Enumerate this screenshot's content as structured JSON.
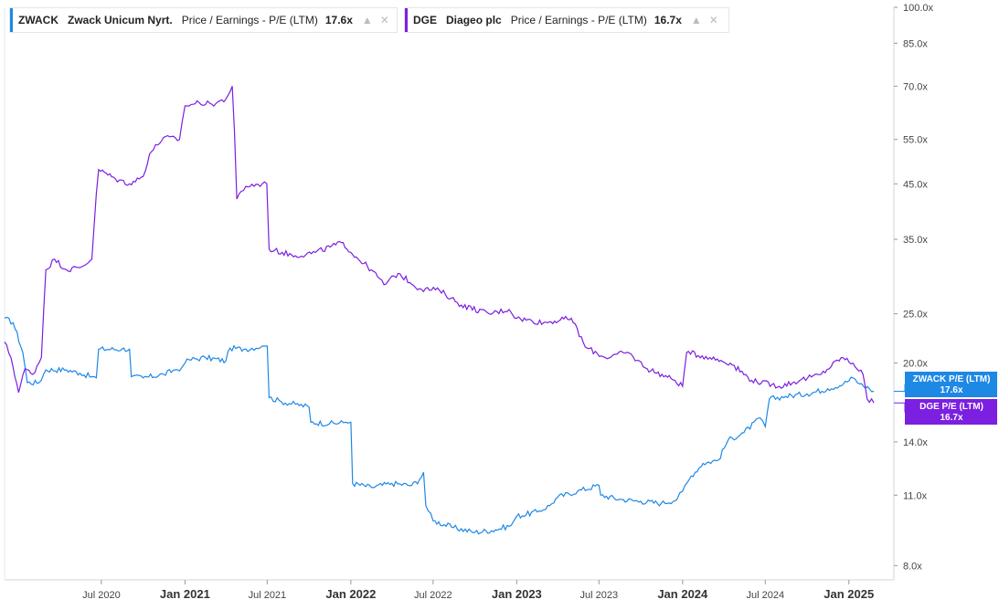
{
  "legend": [
    {
      "ticker": "ZWACK",
      "name": "Zwack Unicum Nyrt.",
      "metric": "Price / Earnings - P/E (LTM)",
      "value": "17.6x",
      "color": "#1e88e5"
    },
    {
      "ticker": "DGE",
      "name": "Diageo plc",
      "metric": "Price / Earnings - P/E (LTM)",
      "value": "16.7x",
      "color": "#7b1fe0"
    }
  ],
  "icons": {
    "chart": "chart-icon",
    "close": "close-icon"
  },
  "chart_data": {
    "type": "line",
    "y_scale": "log",
    "ylim": [
      7.5,
      100
    ],
    "y_ticks": [
      8,
      11,
      14,
      20,
      25,
      35,
      45,
      55,
      70,
      85,
      100
    ],
    "y_tick_labels": [
      "8.0x",
      "11.0x",
      "14.0x",
      "20.0x",
      "25.0x",
      "35.0x",
      "45.0x",
      "55.0x",
      "70.0x",
      "85.0x",
      "100.0x"
    ],
    "xlim": [
      "2019-12-01",
      "2025-04-10"
    ],
    "x_ticks": [
      {
        "date": "2020-07-01",
        "label": "Jul 2020",
        "major": false
      },
      {
        "date": "2021-01-01",
        "label": "Jan 2021",
        "major": true
      },
      {
        "date": "2021-07-01",
        "label": "Jul 2021",
        "major": false
      },
      {
        "date": "2022-01-01",
        "label": "Jan 2022",
        "major": true
      },
      {
        "date": "2022-07-01",
        "label": "Jul 2022",
        "major": false
      },
      {
        "date": "2023-01-01",
        "label": "Jan 2023",
        "major": true
      },
      {
        "date": "2023-07-01",
        "label": "Jul 2023",
        "major": false
      },
      {
        "date": "2024-01-01",
        "label": "Jan 2024",
        "major": true
      },
      {
        "date": "2024-07-01",
        "label": "Jul 2024",
        "major": false
      },
      {
        "date": "2025-01-01",
        "label": "Jan 2025",
        "major": true
      }
    ],
    "series": [
      {
        "name": "ZWACK P/E (LTM)",
        "color": "#1e88e5",
        "last": "17.6x",
        "points": [
          [
            "2019-12-01",
            24.5
          ],
          [
            "2019-12-20",
            24.0
          ],
          [
            "2020-01-10",
            21.0
          ],
          [
            "2020-01-20",
            18.3
          ],
          [
            "2020-02-15",
            18.3
          ],
          [
            "2020-03-01",
            19.4
          ],
          [
            "2020-04-15",
            19.4
          ],
          [
            "2020-05-15",
            19.1
          ],
          [
            "2020-06-10",
            18.8
          ],
          [
            "2020-06-20",
            18.7
          ],
          [
            "2020-06-25",
            21.3
          ],
          [
            "2020-08-15",
            21.3
          ],
          [
            "2020-09-01",
            21.3
          ],
          [
            "2020-09-05",
            18.8
          ],
          [
            "2020-10-01",
            18.7
          ],
          [
            "2020-11-15",
            19.0
          ],
          [
            "2020-12-10",
            19.4
          ],
          [
            "2020-12-25",
            19.6
          ],
          [
            "2021-01-01",
            20.0
          ],
          [
            "2021-01-10",
            20.3
          ],
          [
            "2021-02-15",
            20.5
          ],
          [
            "2021-04-01",
            20.2
          ],
          [
            "2021-04-10",
            21.4
          ],
          [
            "2021-05-15",
            21.3
          ],
          [
            "2021-06-20",
            21.6
          ],
          [
            "2021-06-25",
            21.6
          ],
          [
            "2021-07-01",
            21.6
          ],
          [
            "2021-07-05",
            17.1
          ],
          [
            "2021-08-01",
            16.8
          ],
          [
            "2021-09-01",
            16.6
          ],
          [
            "2021-10-01",
            16.4
          ],
          [
            "2021-10-05",
            15.3
          ],
          [
            "2021-11-15",
            15.2
          ],
          [
            "2021-12-20",
            15.3
          ],
          [
            "2022-01-01",
            15.3
          ],
          [
            "2022-01-05",
            11.6
          ],
          [
            "2022-02-15",
            11.4
          ],
          [
            "2022-04-01",
            11.6
          ],
          [
            "2022-05-15",
            11.5
          ],
          [
            "2022-06-01",
            11.8
          ],
          [
            "2022-06-10",
            12.2
          ],
          [
            "2022-06-15",
            10.5
          ],
          [
            "2022-07-01",
            9.8
          ],
          [
            "2022-08-15",
            9.5
          ],
          [
            "2022-10-01",
            9.3
          ],
          [
            "2022-11-15",
            9.4
          ],
          [
            "2022-12-20",
            9.6
          ],
          [
            "2023-01-01",
            10.0
          ],
          [
            "2023-02-15",
            10.2
          ],
          [
            "2023-03-15",
            10.5
          ],
          [
            "2023-04-01",
            10.9
          ],
          [
            "2023-05-15",
            11.2
          ],
          [
            "2023-07-01",
            11.5
          ],
          [
            "2023-07-05",
            11.0
          ],
          [
            "2023-08-15",
            10.8
          ],
          [
            "2023-10-01",
            10.7
          ],
          [
            "2023-11-15",
            10.6
          ],
          [
            "2023-12-20",
            10.8
          ],
          [
            "2024-01-01",
            11.2
          ],
          [
            "2024-01-20",
            12.0
          ],
          [
            "2024-02-15",
            12.7
          ],
          [
            "2024-03-20",
            12.9
          ],
          [
            "2024-04-10",
            14.1
          ],
          [
            "2024-05-15",
            14.6
          ],
          [
            "2024-06-20",
            15.6
          ],
          [
            "2024-07-01",
            15.0
          ],
          [
            "2024-07-10",
            17.0
          ],
          [
            "2024-08-15",
            17.2
          ],
          [
            "2024-10-01",
            17.4
          ],
          [
            "2024-11-15",
            17.8
          ],
          [
            "2024-12-20",
            18.2
          ],
          [
            "2025-01-10",
            18.7
          ],
          [
            "2025-01-25",
            18.2
          ],
          [
            "2025-02-15",
            17.8
          ],
          [
            "2025-02-25",
            17.6
          ]
        ]
      },
      {
        "name": "DGE P/E (LTM)",
        "color": "#7b1fe0",
        "last": "16.7x",
        "points": [
          [
            "2019-12-01",
            22.0
          ],
          [
            "2019-12-15",
            20.5
          ],
          [
            "2020-01-01",
            17.5
          ],
          [
            "2020-01-15",
            19.5
          ],
          [
            "2020-02-01",
            19.0
          ],
          [
            "2020-02-20",
            20.5
          ],
          [
            "2020-03-01",
            30.5
          ],
          [
            "2020-03-20",
            32.0
          ],
          [
            "2020-04-15",
            30.5
          ],
          [
            "2020-05-15",
            30.8
          ],
          [
            "2020-06-10",
            32.0
          ],
          [
            "2020-06-25",
            48.0
          ],
          [
            "2020-08-01",
            46.0
          ],
          [
            "2020-09-01",
            45.0
          ],
          [
            "2020-10-01",
            46.5
          ],
          [
            "2020-10-15",
            51.5
          ],
          [
            "2020-11-15",
            55.5
          ],
          [
            "2020-12-20",
            55.0
          ],
          [
            "2021-01-01",
            64.0
          ],
          [
            "2021-02-01",
            65.0
          ],
          [
            "2021-03-01",
            64.5
          ],
          [
            "2021-04-01",
            66.0
          ],
          [
            "2021-04-15",
            70.0
          ],
          [
            "2021-04-25",
            42.0
          ],
          [
            "2021-05-15",
            44.5
          ],
          [
            "2021-06-20",
            45.0
          ],
          [
            "2021-06-30",
            45.0
          ],
          [
            "2021-07-05",
            33.5
          ],
          [
            "2021-09-01",
            32.5
          ],
          [
            "2021-10-15",
            33.0
          ],
          [
            "2021-12-15",
            34.5
          ],
          [
            "2022-01-01",
            33.0
          ],
          [
            "2022-02-15",
            30.5
          ],
          [
            "2022-03-15",
            28.5
          ],
          [
            "2022-04-15",
            30.0
          ],
          [
            "2022-06-01",
            28.0
          ],
          [
            "2022-07-15",
            27.8
          ],
          [
            "2022-09-01",
            26.0
          ],
          [
            "2022-11-01",
            25.0
          ],
          [
            "2022-12-15",
            25.5
          ],
          [
            "2023-01-01",
            24.5
          ],
          [
            "2023-03-01",
            24.0
          ],
          [
            "2023-05-01",
            24.5
          ],
          [
            "2023-06-01",
            21.5
          ],
          [
            "2023-07-15",
            20.5
          ],
          [
            "2023-09-01",
            21.0
          ],
          [
            "2023-10-15",
            19.5
          ],
          [
            "2023-12-15",
            18.5
          ],
          [
            "2024-01-01",
            18.0
          ],
          [
            "2024-01-10",
            21.0
          ],
          [
            "2024-03-01",
            20.5
          ],
          [
            "2024-04-15",
            20.0
          ],
          [
            "2024-06-01",
            18.5
          ],
          [
            "2024-08-01",
            18.0
          ],
          [
            "2024-09-15",
            18.5
          ],
          [
            "2024-11-01",
            19.0
          ],
          [
            "2024-12-15",
            20.5
          ],
          [
            "2025-01-10",
            20.0
          ],
          [
            "2025-02-01",
            19.0
          ],
          [
            "2025-02-10",
            17.0
          ],
          [
            "2025-02-25",
            16.7
          ]
        ]
      }
    ]
  }
}
